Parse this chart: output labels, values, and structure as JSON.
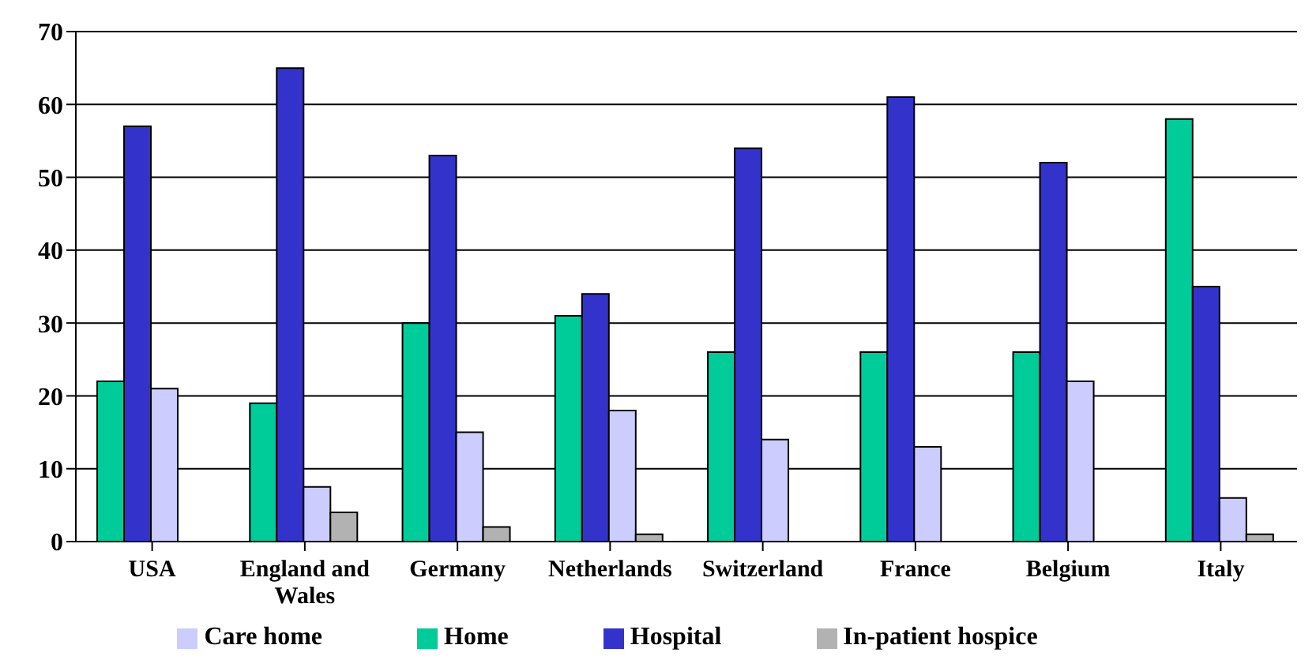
{
  "chart_data": {
    "type": "bar",
    "categories": [
      "USA",
      "England and Wales",
      "Germany",
      "Netherlands",
      "Switzerland",
      "France",
      "Belgium",
      "Italy"
    ],
    "series": [
      {
        "name": "Home",
        "color": "#00cc99",
        "values": [
          22,
          19,
          30,
          31,
          26,
          26,
          26,
          58
        ]
      },
      {
        "name": "Hospital",
        "color": "#3333cc",
        "values": [
          57,
          65,
          53,
          34,
          54,
          61,
          52,
          35
        ]
      },
      {
        "name": "Care home",
        "color": "#ccccff",
        "values": [
          21,
          7.5,
          15,
          18,
          14,
          13,
          22,
          6
        ]
      },
      {
        "name": "In-patient hospice",
        "color": "#b2b2b2",
        "values": [
          0,
          4,
          2,
          1,
          0,
          0,
          0,
          1
        ]
      }
    ],
    "ylim": [
      0,
      70
    ],
    "yticks": [
      0,
      10,
      20,
      30,
      40,
      50,
      60,
      70
    ],
    "grid": "y",
    "legend": "bottom"
  }
}
